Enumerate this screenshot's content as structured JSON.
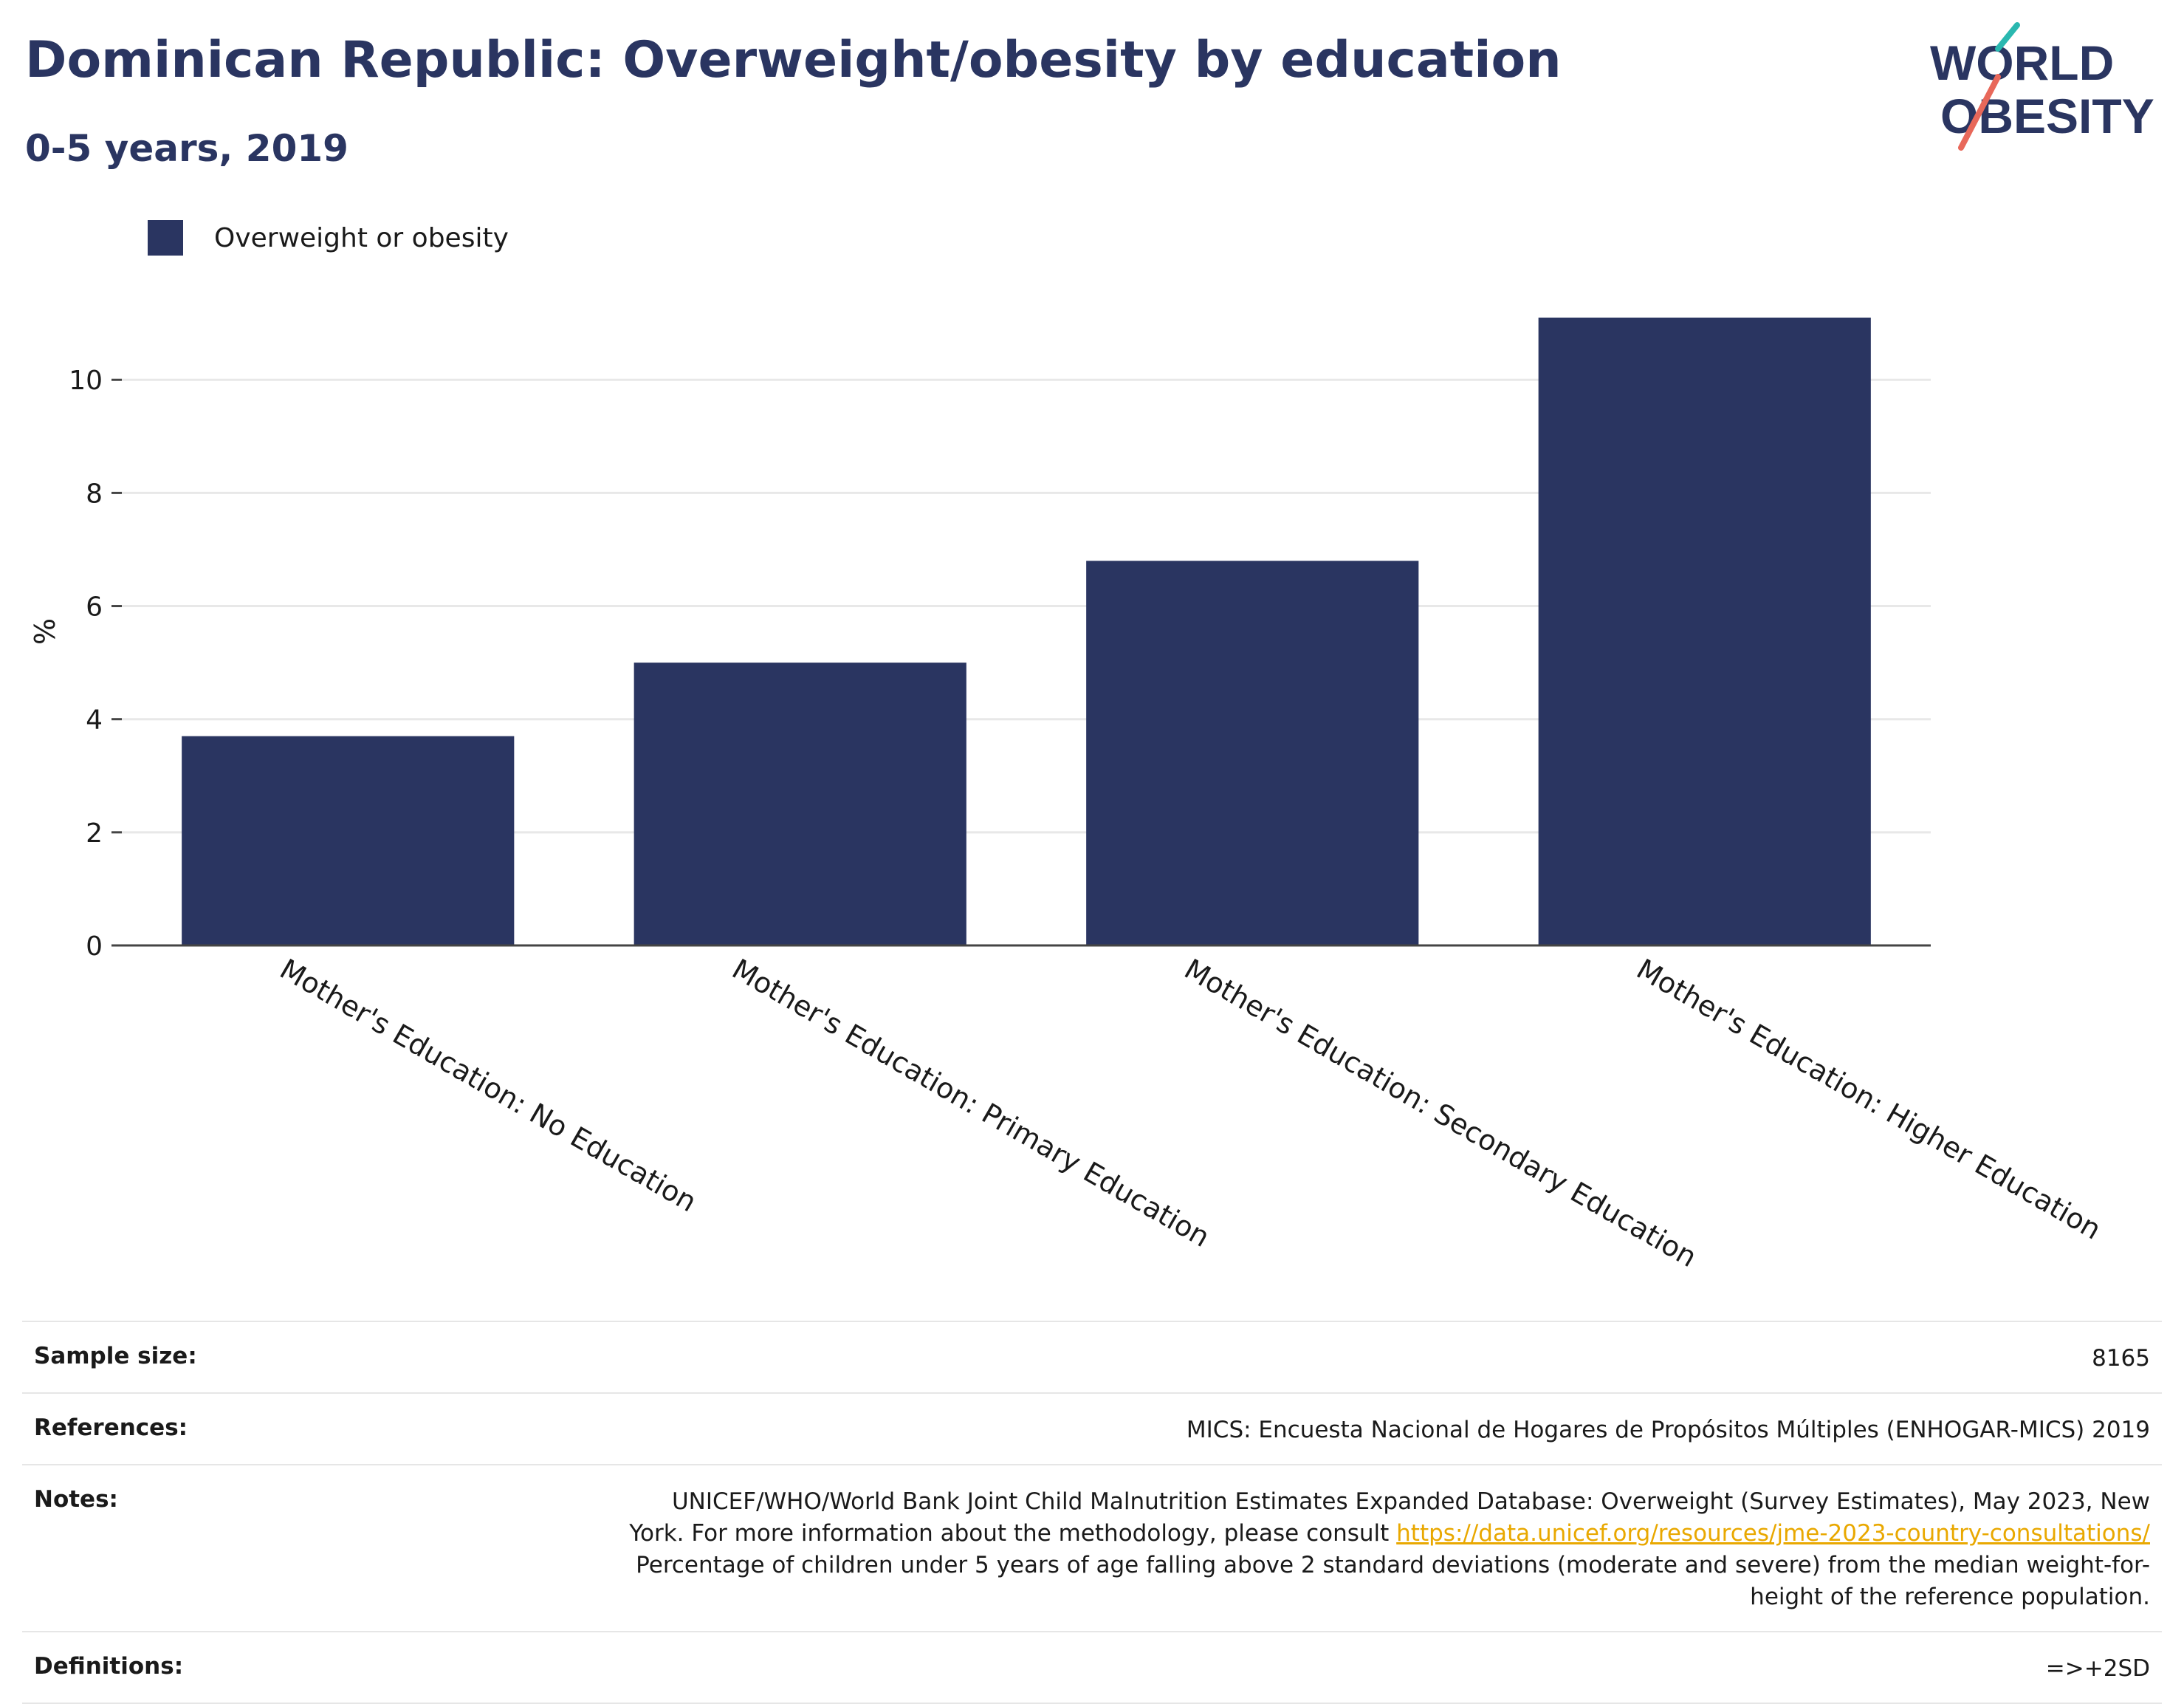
{
  "header": {
    "title": "Dominican Republic: Overweight/obesity by education",
    "subtitle": "0-5 years, 2019"
  },
  "logo": {
    "line1": "WORLD",
    "line2": "OBESITY",
    "slash_colors": [
      "#2ab8b0",
      "#e8685a"
    ]
  },
  "legend": {
    "label": "Overweight or obesity",
    "color": "#2a3561"
  },
  "chart_data": {
    "type": "bar",
    "categories": [
      "Mother's Education: No Education",
      "Mother's Education: Primary Education",
      "Mother's Education: Secondary Education",
      "Mother's Education: Higher Education"
    ],
    "series": [
      {
        "name": "Overweight or obesity",
        "values": [
          3.7,
          5.0,
          6.8,
          11.1
        ],
        "color": "#2a3561"
      }
    ],
    "title": "Dominican Republic: Overweight/obesity by education",
    "subtitle": "0-5 years, 2019",
    "xlabel": "",
    "ylabel": "%",
    "ylim": [
      0,
      11.1
    ],
    "yticks": [
      0,
      2,
      4,
      6,
      8,
      10
    ],
    "grid": true,
    "legend_position": "top-left"
  },
  "footer": {
    "sample_size": {
      "label": "Sample size:",
      "value": "8165"
    },
    "references": {
      "label": "References:",
      "value": "MICS: Encuesta Nacional de Hogares de Propósitos Múltiples (ENHOGAR-MICS) 2019"
    },
    "notes": {
      "label": "Notes:",
      "text_before": "UNICEF/WHO/World Bank Joint Child Malnutrition Estimates Expanded Database: Overweight (Survey Estimates), May 2023, New York. For more information about the methodology, please consult ",
      "link": "https://data.unicef.org/resources/jme-2023-country-consultations/",
      "text_after": " Percentage of children under 5 years of age falling above 2 standard deviations (moderate and severe) from the median weight-for-height of the reference population."
    },
    "definitions": {
      "label": "Definitions:",
      "value": "=>+2SD"
    }
  }
}
